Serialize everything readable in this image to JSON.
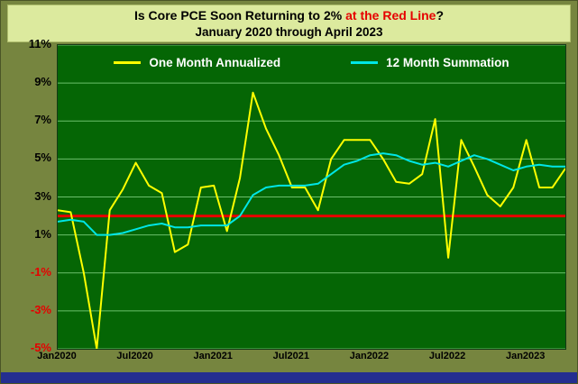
{
  "title": {
    "prefix": "Is Core PCE Soon Returning to 2% ",
    "highlight": "at the Red Line",
    "suffix": "?",
    "line2": "January 2020 through April 2023"
  },
  "colors": {
    "outer_background": "#76853f",
    "title_background": "#dcea9e",
    "title_highlight": "#e60000",
    "plot_background": "#056605",
    "gridline": "#7ecf7e",
    "one_month_line": "#ffff00",
    "twelve_month_line": "#00e6e6",
    "reference_line": "#e60000",
    "negative_tick_label": "#e60000",
    "bottom_bar": "#242e90",
    "legend_text": "#ffffff"
  },
  "chart_data": {
    "type": "line",
    "title": "Is Core PCE Soon Returning to 2% at the Red Line?",
    "subtitle": "January 2020 through April 2023",
    "grid": "horizontal",
    "legend_position": "top-inside",
    "ylim": [
      -5,
      11
    ],
    "y_ticks": [
      11,
      9,
      7,
      5,
      3,
      1,
      -1,
      -3,
      -5
    ],
    "y_tick_suffix": "%",
    "x_tick_labels": [
      "Jan2020",
      "Jul2020",
      "Jan2021",
      "Jul2021",
      "Jan2022",
      "Jul2022",
      "Jan2023"
    ],
    "x": [
      "Jan2020",
      "Feb2020",
      "Mar2020",
      "Apr2020",
      "May2020",
      "Jun2020",
      "Jul2020",
      "Aug2020",
      "Sep2020",
      "Oct2020",
      "Nov2020",
      "Dec2020",
      "Jan2021",
      "Feb2021",
      "Mar2021",
      "Apr2021",
      "May2021",
      "Jun2021",
      "Jul2021",
      "Aug2021",
      "Sep2021",
      "Oct2021",
      "Nov2021",
      "Dec2021",
      "Jan2022",
      "Feb2022",
      "Mar2022",
      "Apr2022",
      "May2022",
      "Jun2022",
      "Jul2022",
      "Aug2022",
      "Sep2022",
      "Oct2022",
      "Nov2022",
      "Dec2022",
      "Jan2023",
      "Feb2023",
      "Mar2023",
      "Apr2023"
    ],
    "series": [
      {
        "name": "One Month Annualized",
        "color": "#ffff00",
        "values": [
          2.3,
          2.2,
          -1.0,
          -5.0,
          2.3,
          3.4,
          4.8,
          3.6,
          3.2,
          0.1,
          0.5,
          3.5,
          3.6,
          1.2,
          4.0,
          8.5,
          6.6,
          5.2,
          3.5,
          3.5,
          2.3,
          5.0,
          6.0,
          6.0,
          6.0,
          5.0,
          3.8,
          3.7,
          4.2,
          7.1,
          -0.2,
          6.0,
          4.6,
          3.1,
          2.5,
          3.5,
          6.0,
          3.5,
          3.5,
          4.5
        ]
      },
      {
        "name": "12 Month Summation",
        "color": "#00e6e6",
        "values": [
          1.7,
          1.8,
          1.7,
          1.0,
          1.0,
          1.1,
          1.3,
          1.5,
          1.6,
          1.4,
          1.4,
          1.5,
          1.5,
          1.5,
          2.0,
          3.1,
          3.5,
          3.6,
          3.6,
          3.6,
          3.7,
          4.2,
          4.7,
          4.9,
          5.2,
          5.3,
          5.2,
          4.9,
          4.7,
          4.8,
          4.6,
          4.9,
          5.2,
          5.0,
          4.7,
          4.4,
          4.6,
          4.7,
          4.6,
          4.6
        ]
      }
    ],
    "reference_line": {
      "label": "Red Line",
      "value": 2,
      "color": "#e60000"
    }
  }
}
